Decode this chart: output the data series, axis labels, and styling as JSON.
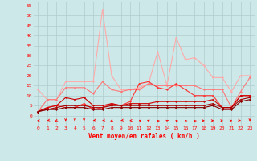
{
  "xlabel": "Vent moyen/en rafales ( km/h )",
  "bg_color": "#cce8e8",
  "grid_color": "#b0cccc",
  "x_ticks": [
    0,
    1,
    2,
    3,
    4,
    5,
    6,
    7,
    8,
    9,
    10,
    11,
    12,
    13,
    14,
    15,
    16,
    17,
    18,
    19,
    20,
    21,
    22,
    23
  ],
  "y_ticks": [
    0,
    5,
    10,
    15,
    20,
    25,
    30,
    35,
    40,
    45,
    50,
    55
  ],
  "ylim": [
    -5,
    57
  ],
  "xlim": [
    -0.5,
    23.5
  ],
  "series": [
    {
      "color": "#ffaaaa",
      "linewidth": 0.8,
      "marker": "D",
      "markersize": 1.5,
      "values": [
        13,
        8,
        8,
        17,
        17,
        17,
        17,
        53,
        20,
        13,
        13,
        14,
        16,
        32,
        15,
        39,
        28,
        29,
        25,
        19,
        19,
        12,
        20,
        20
      ]
    },
    {
      "color": "#ff7777",
      "linewidth": 0.8,
      "marker": "D",
      "markersize": 1.5,
      "values": [
        2,
        8,
        8,
        14,
        14,
        14,
        11,
        17,
        13,
        12,
        13,
        13,
        16,
        15,
        15,
        15,
        15,
        15,
        13,
        13,
        13,
        4,
        12,
        19
      ]
    },
    {
      "color": "#ff3333",
      "linewidth": 0.8,
      "marker": "D",
      "markersize": 1.5,
      "values": [
        2,
        4,
        5,
        4,
        4,
        6,
        3,
        4,
        6,
        5,
        7,
        16,
        17,
        14,
        13,
        16,
        13,
        10,
        10,
        10,
        4,
        4,
        10,
        10
      ]
    },
    {
      "color": "#cc0000",
      "linewidth": 0.8,
      "marker": "D",
      "markersize": 1.5,
      "values": [
        2,
        4,
        5,
        9,
        8,
        9,
        5,
        5,
        6,
        5,
        6,
        6,
        6,
        7,
        7,
        7,
        7,
        7,
        7,
        8,
        4,
        4,
        10,
        10
      ]
    },
    {
      "color": "#aa0000",
      "linewidth": 0.8,
      "marker": "D",
      "markersize": 1.5,
      "values": [
        2,
        3,
        4,
        5,
        5,
        5,
        4,
        4,
        5,
        5,
        5,
        5,
        5,
        5,
        5,
        5,
        5,
        5,
        5,
        6,
        4,
        4,
        8,
        9
      ]
    },
    {
      "color": "#880000",
      "linewidth": 0.8,
      "marker": "D",
      "markersize": 1.5,
      "values": [
        2,
        3,
        3,
        4,
        4,
        4,
        3,
        3,
        4,
        4,
        4,
        4,
        4,
        4,
        4,
        4,
        4,
        4,
        4,
        5,
        3,
        3,
        7,
        8
      ]
    }
  ],
  "wind_dirs": [
    270,
    315,
    335,
    0,
    0,
    0,
    315,
    315,
    335,
    315,
    295,
    250,
    210,
    195,
    200,
    195,
    195,
    195,
    90,
    90,
    90,
    90,
    45,
    0
  ]
}
